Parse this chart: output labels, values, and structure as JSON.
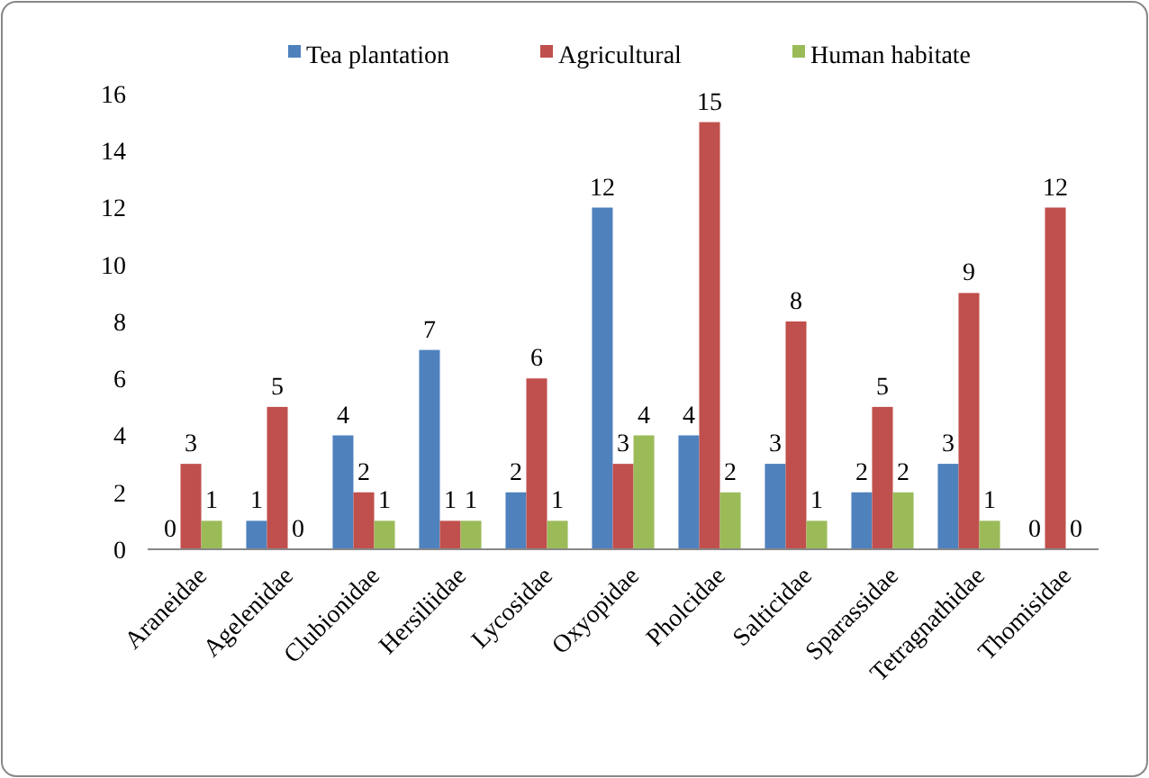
{
  "chart_data": {
    "type": "bar",
    "categories": [
      "Araneidae",
      "Agelenidae",
      "Clubionidae",
      "Hersiliidae",
      "Lycosidae",
      "Oxyopidae",
      "Pholcidae",
      "Salticidae",
      "Sparassidae",
      "Tetragnathidae",
      "Thomisidae"
    ],
    "series": [
      {
        "name": "Tea plantation",
        "color": "#4f81bd",
        "values": [
          0,
          1,
          4,
          7,
          2,
          12,
          4,
          3,
          2,
          3,
          0
        ]
      },
      {
        "name": "Agricultural",
        "color": "#c0504d",
        "values": [
          3,
          5,
          2,
          1,
          6,
          3,
          15,
          8,
          5,
          9,
          12
        ]
      },
      {
        "name": "Human habitate",
        "color": "#9bbb59",
        "values": [
          1,
          0,
          1,
          1,
          1,
          4,
          2,
          1,
          2,
          1,
          0
        ]
      }
    ],
    "ylim": [
      0,
      16
    ],
    "yticks": [
      0,
      2,
      4,
      6,
      8,
      10,
      12,
      14,
      16
    ],
    "grid": false,
    "legend": "top",
    "data_labels": true
  }
}
